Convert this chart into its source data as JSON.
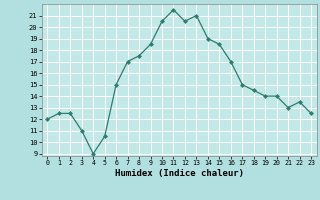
{
  "xlabel": "Humidex (Indice chaleur)",
  "x": [
    0,
    1,
    2,
    3,
    4,
    5,
    6,
    7,
    8,
    9,
    10,
    11,
    12,
    13,
    14,
    15,
    16,
    17,
    18,
    19,
    20,
    21,
    22,
    23
  ],
  "y": [
    12,
    12.5,
    12.5,
    11,
    9,
    10.5,
    15,
    17,
    17.5,
    18.5,
    20.5,
    21.5,
    20.5,
    21,
    19,
    18.5,
    17,
    15,
    14.5,
    14,
    14,
    13,
    13.5,
    12.5
  ],
  "ylim_min": 8.8,
  "ylim_max": 22.0,
  "xlim_min": -0.5,
  "xlim_max": 23.5,
  "yticks": [
    9,
    10,
    11,
    12,
    13,
    14,
    15,
    16,
    17,
    18,
    19,
    20,
    21
  ],
  "xticks": [
    0,
    1,
    2,
    3,
    4,
    5,
    6,
    7,
    8,
    9,
    10,
    11,
    12,
    13,
    14,
    15,
    16,
    17,
    18,
    19,
    20,
    21,
    22,
    23
  ],
  "line_color": "#2e7d6e",
  "marker": "D",
  "marker_size": 2.0,
  "bg_color": "#b2e0e0",
  "grid_color": "#ffffff",
  "axes_bg_color": "#c2e8e8"
}
